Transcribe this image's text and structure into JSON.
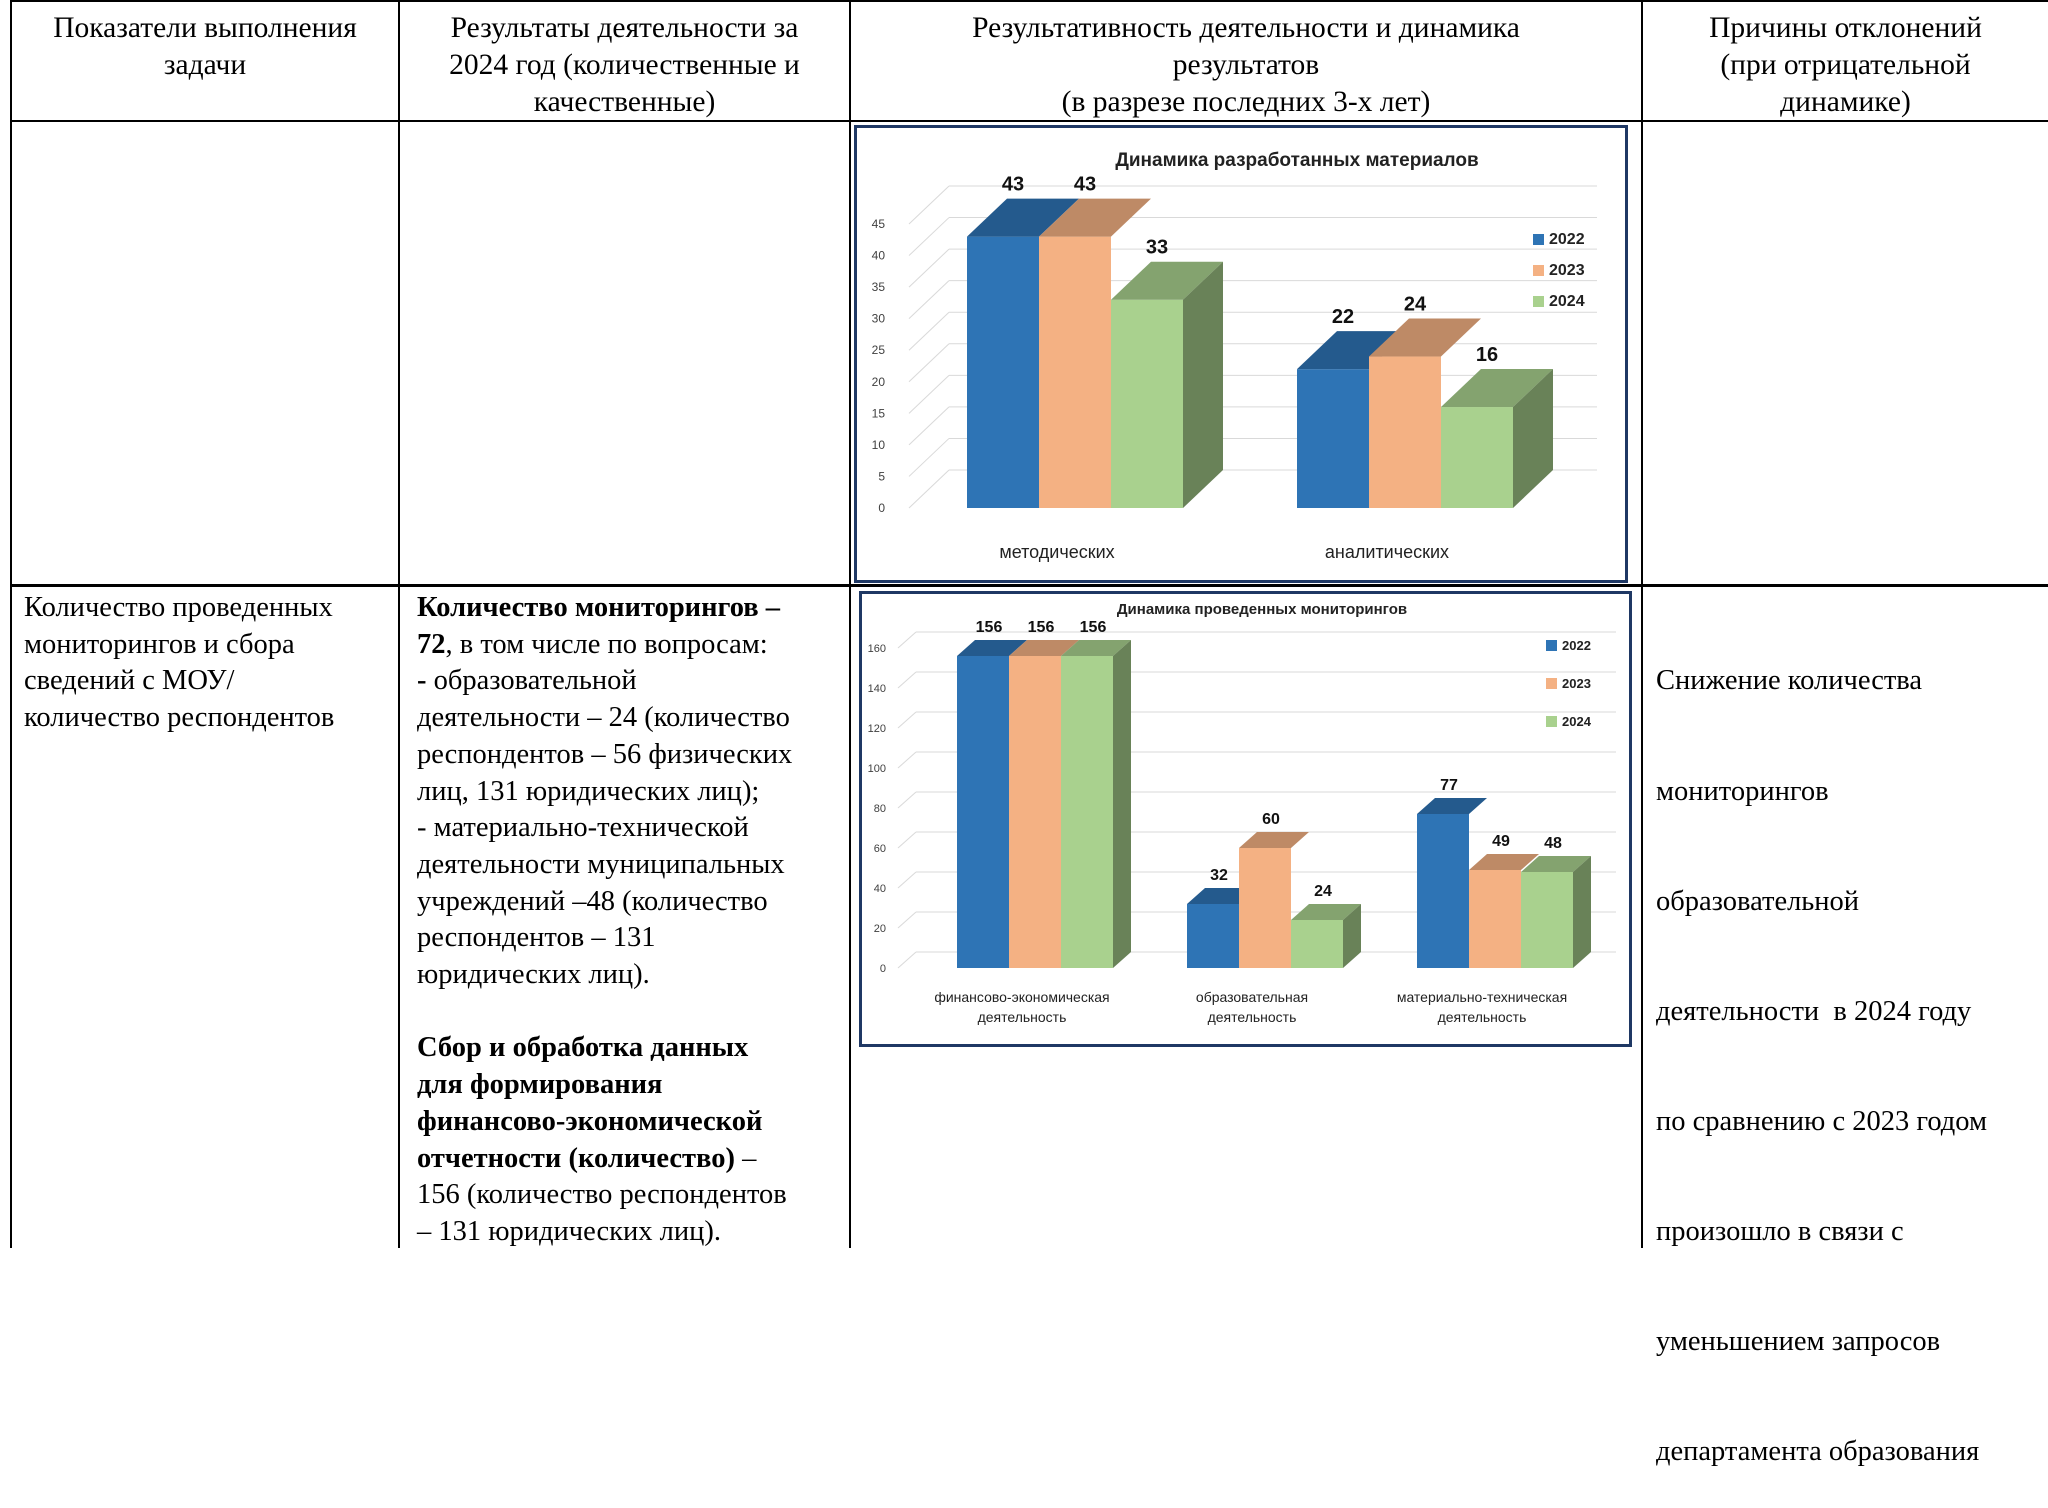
{
  "table": {
    "headers": [
      "Показатели выполнения задачи",
      "Результаты деятельности за 2024 год (количественные и качественные)",
      "Результативность деятельности и динамика результатов (в разрезе последних 3-х лет)",
      "Причины отклонений (при отрицательной динамике)"
    ],
    "header_lines": {
      "col1": [
        "Показатели выполнения",
        "задачи"
      ],
      "col2": [
        "Результаты деятельности за",
        "2024 год (количественные и",
        "качественные)"
      ],
      "col3": [
        "Результативность деятельности и динамика",
        "результатов",
        "(в разрезе последних 3-х лет)"
      ],
      "col4": [
        "Причины отклонений",
        "(при отрицательной",
        "динамике)"
      ]
    },
    "row2": {
      "indicator_lines": [
        "Количество проведенных",
        "мониторингов и сбора",
        "сведений с МОУ/",
        "количество респондентов"
      ],
      "results": {
        "p1_bold_a": "Количество мониторингов –",
        "p1_bold_b": "72",
        "p1_rest": ", в том числе по вопросам:",
        "l3_bold": "-",
        "l3_rest": " образовательной",
        "lines": [
          "деятельности – 24 (количество",
          "респондентов – 56 физических",
          "лиц, 131 юридических лиц);",
          "- материально-технической",
          "деятельности муниципальных",
          "учреждений –48 (количество",
          "респондентов – 131",
          "юридических лиц)."
        ],
        "bold_lines": [
          "Сбор и обработка данных",
          "для формирования",
          "финансово-экономической",
          "отчетности (количество)"
        ],
        "after_bold": " –",
        "tail_lines": [
          "156 (количество респондентов",
          "– 131 юридических лиц)."
        ]
      },
      "reason_lines": [
        "Снижение количества",
        "мониторингов",
        "образовательной",
        "деятельности  в 2024 году",
        "по сравнению с 2023 годом",
        "произошло в связи с",
        "уменьшением запросов",
        "департамента образования"
      ]
    }
  },
  "colors": {
    "2022": "#2e74b5",
    "2023": "#f4b183",
    "2024": "#a9d18e",
    "frame": "#1f3864"
  },
  "chart_data": [
    {
      "type": "bar",
      "title": "Динамика разработанных материалов",
      "categories": [
        "методических",
        "аналитических"
      ],
      "series": [
        {
          "name": "2022",
          "values": [
            43,
            22
          ]
        },
        {
          "name": "2023",
          "values": [
            43,
            24
          ]
        },
        {
          "name": "2024",
          "values": [
            33,
            16
          ]
        }
      ],
      "ylim": [
        0,
        45
      ],
      "yticks": [
        0,
        5,
        10,
        15,
        20,
        25,
        30,
        35,
        40,
        45
      ],
      "legend": "right",
      "grid": true
    },
    {
      "type": "bar",
      "title": "Динамика проведенных мониторингов",
      "categories": [
        [
          "финансово-экономическая",
          "деятельность"
        ],
        [
          "образовательная",
          "деятельность"
        ],
        [
          "материально-техническая",
          "деятельность"
        ]
      ],
      "series": [
        {
          "name": "2022",
          "values": [
            156,
            32,
            77
          ]
        },
        {
          "name": "2023",
          "values": [
            156,
            60,
            49
          ]
        },
        {
          "name": "2024",
          "values": [
            156,
            24,
            48
          ]
        }
      ],
      "ylim": [
        0,
        160
      ],
      "yticks": [
        0,
        20,
        40,
        60,
        80,
        100,
        120,
        140,
        160
      ],
      "legend": "right",
      "grid": true
    }
  ]
}
